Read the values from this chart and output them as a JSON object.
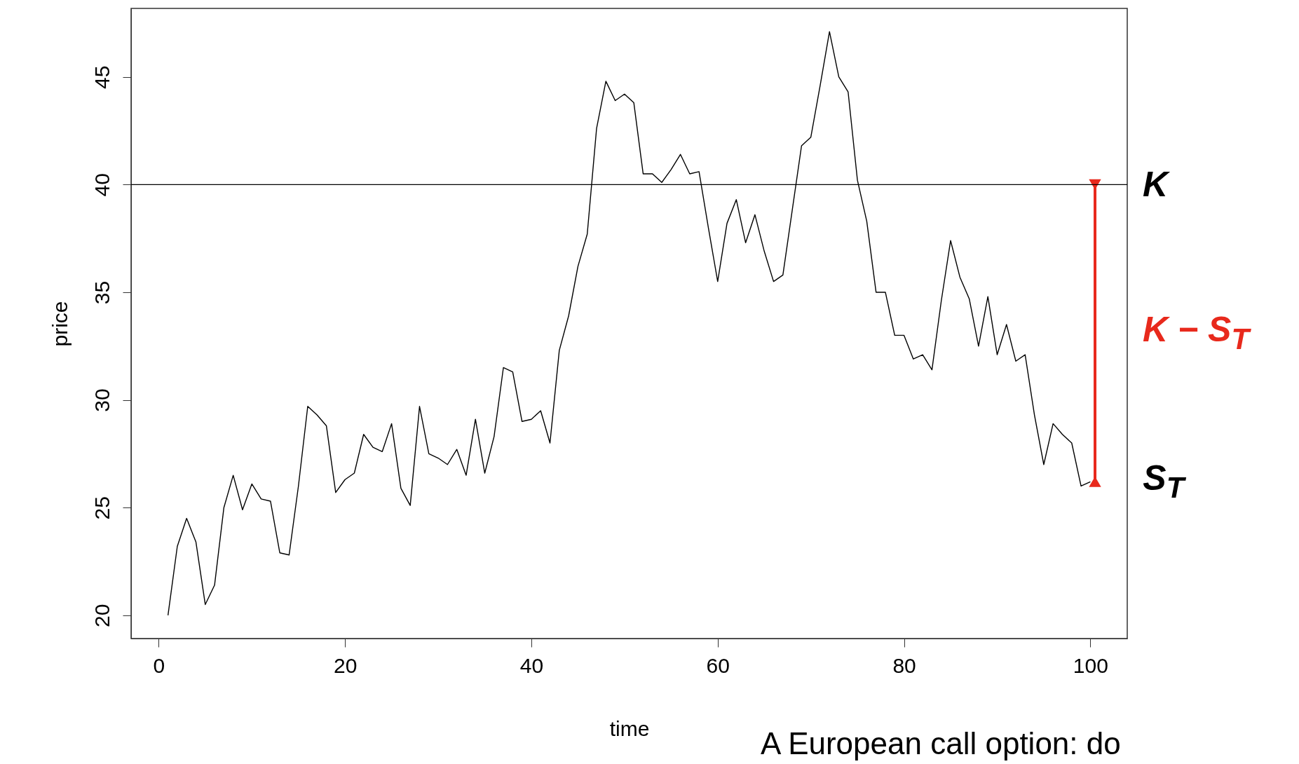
{
  "chart_data": {
    "type": "line",
    "xlabel": "time",
    "ylabel": "price",
    "x": [
      1,
      2,
      3,
      4,
      5,
      6,
      7,
      8,
      9,
      10,
      11,
      12,
      13,
      14,
      15,
      16,
      17,
      18,
      19,
      20,
      21,
      22,
      23,
      24,
      25,
      26,
      27,
      28,
      29,
      30,
      31,
      32,
      33,
      34,
      35,
      36,
      37,
      38,
      39,
      40,
      41,
      42,
      43,
      44,
      45,
      46,
      47,
      48,
      49,
      50,
      51,
      52,
      53,
      54,
      55,
      56,
      57,
      58,
      59,
      60,
      61,
      62,
      63,
      64,
      65,
      66,
      67,
      68,
      69,
      70,
      71,
      72,
      73,
      74,
      75,
      76,
      77,
      78,
      79,
      80,
      81,
      82,
      83,
      84,
      85,
      86,
      87,
      88,
      89,
      90,
      91,
      92,
      93,
      94,
      95,
      96,
      97,
      98,
      99,
      100
    ],
    "xlim": [
      -2.96,
      103.96
    ],
    "xticks": [
      0,
      20,
      40,
      60,
      80,
      100
    ],
    "ylim": [
      18.92,
      48.18
    ],
    "yticks": [
      20,
      25,
      30,
      35,
      40,
      45
    ],
    "series": [
      {
        "color": "#000000",
        "values": [
          20.0,
          23.2,
          24.5,
          23.4,
          20.5,
          21.4,
          25.0,
          26.5,
          24.9,
          26.1,
          25.4,
          25.3,
          22.9,
          22.8,
          26.0,
          29.7,
          29.3,
          28.8,
          25.7,
          26.3,
          26.6,
          28.4,
          27.8,
          27.6,
          28.9,
          25.9,
          25.1,
          29.7,
          27.5,
          27.3,
          27.0,
          27.7,
          26.5,
          29.1,
          26.6,
          28.3,
          31.5,
          31.3,
          29.0,
          29.1,
          29.5,
          28.0,
          32.3,
          33.9,
          36.2,
          37.7,
          42.6,
          44.8,
          43.9,
          44.2,
          43.8,
          40.5,
          40.5,
          40.1,
          40.7,
          41.4,
          40.5,
          40.6,
          38.0,
          35.5,
          38.2,
          39.3,
          37.3,
          38.6,
          36.9,
          35.5,
          35.8,
          38.8,
          41.8,
          42.2,
          44.6,
          47.1,
          45.0,
          44.3,
          40.2,
          38.3,
          35.0,
          35.0,
          33.0,
          33.0,
          31.9,
          32.1,
          31.4,
          34.6,
          37.4,
          35.7,
          34.7,
          32.5,
          34.8,
          32.1,
          33.5,
          31.8,
          32.1,
          29.3,
          27.0,
          28.9,
          28.4,
          28.0,
          26.0,
          26.2
        ]
      },
      {
        "name": "K − S$_{T}$",
        "color": "#e8291c",
        "x": [
          100.5,
          100.5
        ],
        "values": [
          26.2,
          40
        ],
        "marker": "triangle"
      }
    ],
    "ref_lines": [
      {
        "axis": "y",
        "value": 40,
        "label": "K",
        "color": "#000000"
      }
    ],
    "annotations": [
      {
        "text": "S$_{T}$",
        "x": 100,
        "y": 26.2
      },
      "A European call option: do"
    ]
  }
}
